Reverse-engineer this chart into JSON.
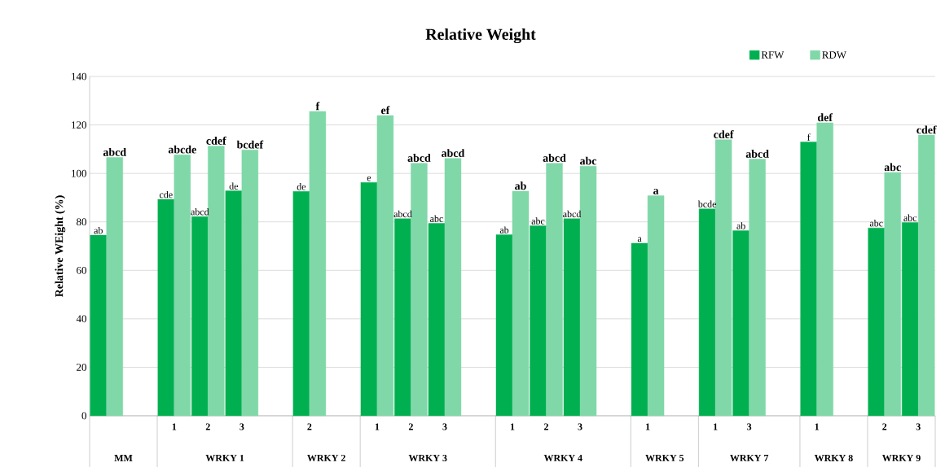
{
  "chart_data": {
    "type": "bar",
    "title": "Relative Weight",
    "ylabel": "Relative WEight (%)",
    "categories": [
      null,
      null,
      "1",
      "2",
      "3",
      null,
      "2",
      null,
      "1",
      "2",
      "3",
      null,
      "1",
      "2",
      "3",
      null,
      "1",
      null,
      "1",
      "3",
      null,
      "1",
      null,
      "2",
      "3"
    ],
    "annotations": [
      "MM",
      "WRKY 1",
      "WRKY 2",
      "WRKY 3",
      "WRKY 4",
      "WRKY 5",
      "WRKY 7",
      "WRKY 8",
      "WRKY 9"
    ],
    "series": [
      {
        "name": "RFW",
        "color": "#00b050",
        "values": [
          74.5,
          null,
          89.3,
          82.2,
          92.8,
          null,
          92.6,
          null,
          96.3,
          81.3,
          79.4,
          null,
          74.7,
          78.4,
          81.3,
          null,
          71.2,
          null,
          85.4,
          76.4,
          null,
          113.0,
          null,
          77.5,
          79.7
        ],
        "value_labels": [
          "ab",
          null,
          "cde",
          "abcd",
          "de",
          null,
          "de",
          null,
          "e",
          "abcd",
          "abc",
          null,
          "ab",
          "abc",
          "abcd",
          null,
          "a",
          null,
          "bcde",
          "ab",
          null,
          "f",
          null,
          "abc",
          "abc"
        ]
      },
      {
        "name": "RDW",
        "color": "#80d8a8",
        "values": [
          106.6,
          null,
          107.7,
          111.3,
          109.7,
          null,
          125.6,
          null,
          123.9,
          104.2,
          106.2,
          null,
          92.7,
          104.2,
          103.0,
          null,
          90.8,
          null,
          113.9,
          105.9,
          null,
          120.9,
          null,
          100.4,
          115.8
        ],
        "value_labels": [
          "abcd",
          null,
          "abcde",
          "cdef",
          "bcdef",
          null,
          "f",
          null,
          "ef",
          "abcd",
          "abcd",
          null,
          "ab",
          "abcd",
          "abc",
          null,
          "a",
          null,
          "cdef",
          "abcd",
          null,
          "def",
          null,
          "abc",
          "cdef"
        ]
      }
    ],
    "ylim": [
      0,
      140
    ],
    "yticks": [
      0,
      20,
      40,
      60,
      80,
      100,
      120,
      140
    ],
    "grid": "y",
    "legend": "top right"
  }
}
